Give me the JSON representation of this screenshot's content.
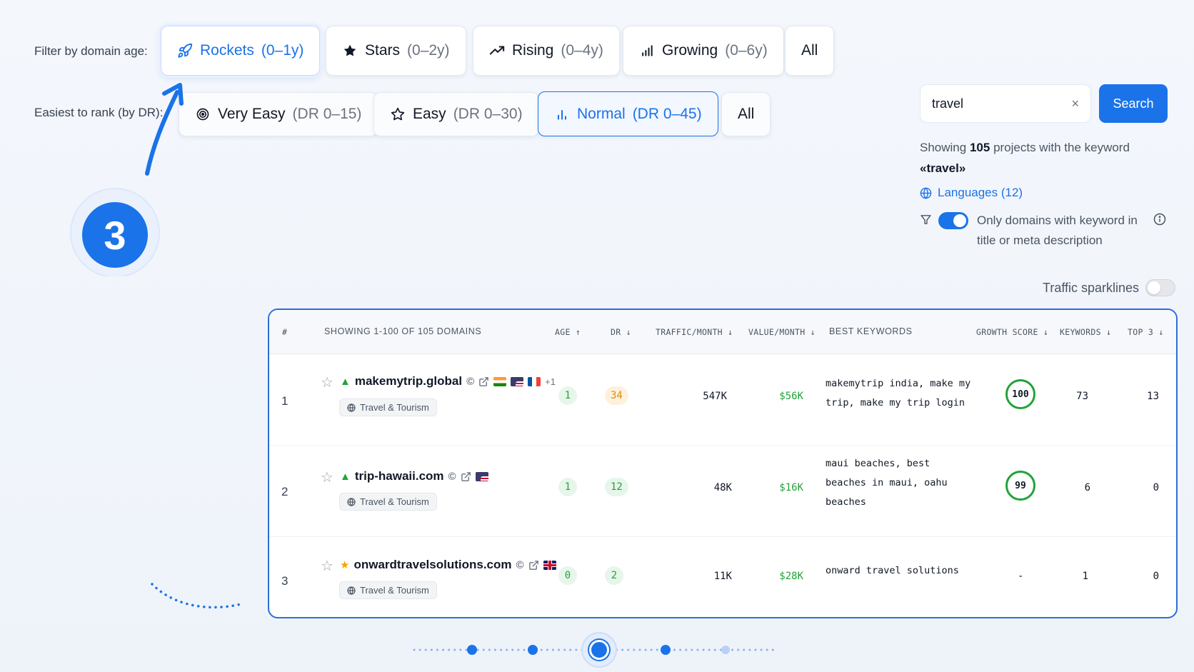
{
  "filters": {
    "age_label": "Filter by domain age:",
    "age_options": [
      {
        "name": "Rockets",
        "range": "(0–1y)"
      },
      {
        "name": "Stars",
        "range": "(0–2y)"
      },
      {
        "name": "Rising",
        "range": "(0–4y)"
      },
      {
        "name": "Growing",
        "range": "(0–6y)"
      },
      {
        "name": "All",
        "range": ""
      }
    ],
    "dr_label": "Easiest to rank (by DR):",
    "dr_options": [
      {
        "name": "Very Easy",
        "range": "(DR 0–15)"
      },
      {
        "name": "Easy",
        "range": "(DR 0–30)"
      },
      {
        "name": "Normal",
        "range": "(DR 0–45)"
      },
      {
        "name": "All",
        "range": ""
      }
    ]
  },
  "step_number": "3",
  "search": {
    "value": "travel",
    "button": "Search",
    "clear": "×"
  },
  "summary": {
    "prefix": "Showing",
    "count": "105",
    "middle": "projects with the keyword",
    "keyword": "«travel»"
  },
  "languages_link": "Languages (12)",
  "keyword_toggle": {
    "line1": "Only domains with keyword in",
    "line2": "title or meta description"
  },
  "sparklines_label": "Traffic sparklines",
  "table": {
    "headers": {
      "rank": "#",
      "showing": "SHOWING 1-100 OF 105 DOMAINS",
      "age": "AGE ↑",
      "dr": "DR ↓",
      "traffic": "TRAFFIC/MONTH ↓",
      "value": "VALUE/MONTH ↓",
      "keywords_best": "BEST KEYWORDS",
      "growth": "GROWTH SCORE ↓",
      "keywords": "KEYWORDS ↓",
      "top3": "TOP 3 ↓"
    },
    "rows": [
      {
        "rank": "1",
        "domain": "makemytrip.global",
        "extra_flags": "+1",
        "category": "Travel & Tourism",
        "age": "1",
        "dr": "34",
        "traffic": "547K",
        "value": "$56K",
        "kw_lines": [
          "makemytrip india, make my",
          "trip, make my trip login"
        ],
        "growth": "100",
        "keywords": "73",
        "top3": "13"
      },
      {
        "rank": "2",
        "domain": "trip-hawaii.com",
        "category": "Travel & Tourism",
        "age": "1",
        "dr": "12",
        "traffic": "48K",
        "value": "$16K",
        "kw_lines": [
          "maui beaches, best",
          "beaches in maui, oahu",
          "beaches"
        ],
        "growth": "99",
        "keywords": "6",
        "top3": "0"
      },
      {
        "rank": "3",
        "domain": "onwardtravelsolutions.com",
        "category": "Travel & Tourism",
        "age": "0",
        "dr": "2",
        "traffic": "11K",
        "value": "$28K",
        "kw_lines": [
          "onward travel solutions"
        ],
        "growth": "-",
        "keywords": "1",
        "top3": "0"
      }
    ]
  },
  "colors": {
    "accent": "#1a73e8",
    "green": "#22a33a",
    "orange": "#e48a0c"
  }
}
